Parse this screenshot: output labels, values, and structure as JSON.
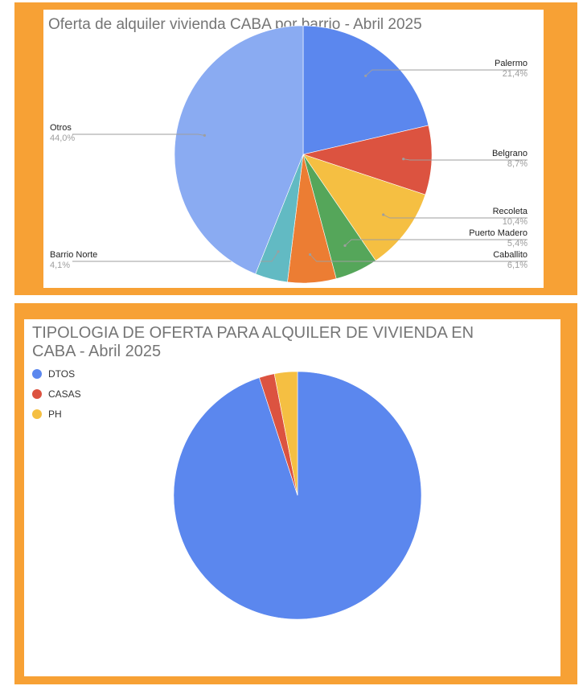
{
  "chart_data": [
    {
      "type": "pie",
      "title": "Oferta de alquiler vivienda CABA por barrio - Abril 2025",
      "labels": [
        "Palermo",
        "Belgrano",
        "Recoleta",
        "Puerto Madero",
        "Caballito",
        "Barrio Norte",
        "Otros"
      ],
      "values": [
        21.4,
        8.7,
        10.4,
        5.4,
        6.1,
        4.1,
        44.0
      ],
      "value_labels": [
        "21,4%",
        "8,7%",
        "10,4%",
        "5,4%",
        "6,1%",
        "4,1%",
        "44,0%"
      ],
      "colors": [
        "#5b87ee",
        "#dc5340",
        "#f5bf42",
        "#55a65a",
        "#ec7d33",
        "#62bac3",
        "#8aabf2"
      ],
      "legend": "labeled-slices"
    },
    {
      "type": "pie",
      "title": "TIPOLOGIA DE OFERTA PARA ALQUILER DE VIVIENDA EN CABA - Abril 2025",
      "labels": [
        "DTOS",
        "CASAS",
        "PH"
      ],
      "values": [
        95,
        2,
        3
      ],
      "colors": [
        "#5b87ee",
        "#dc5340",
        "#f5bf42"
      ],
      "legend": "top-left"
    }
  ]
}
